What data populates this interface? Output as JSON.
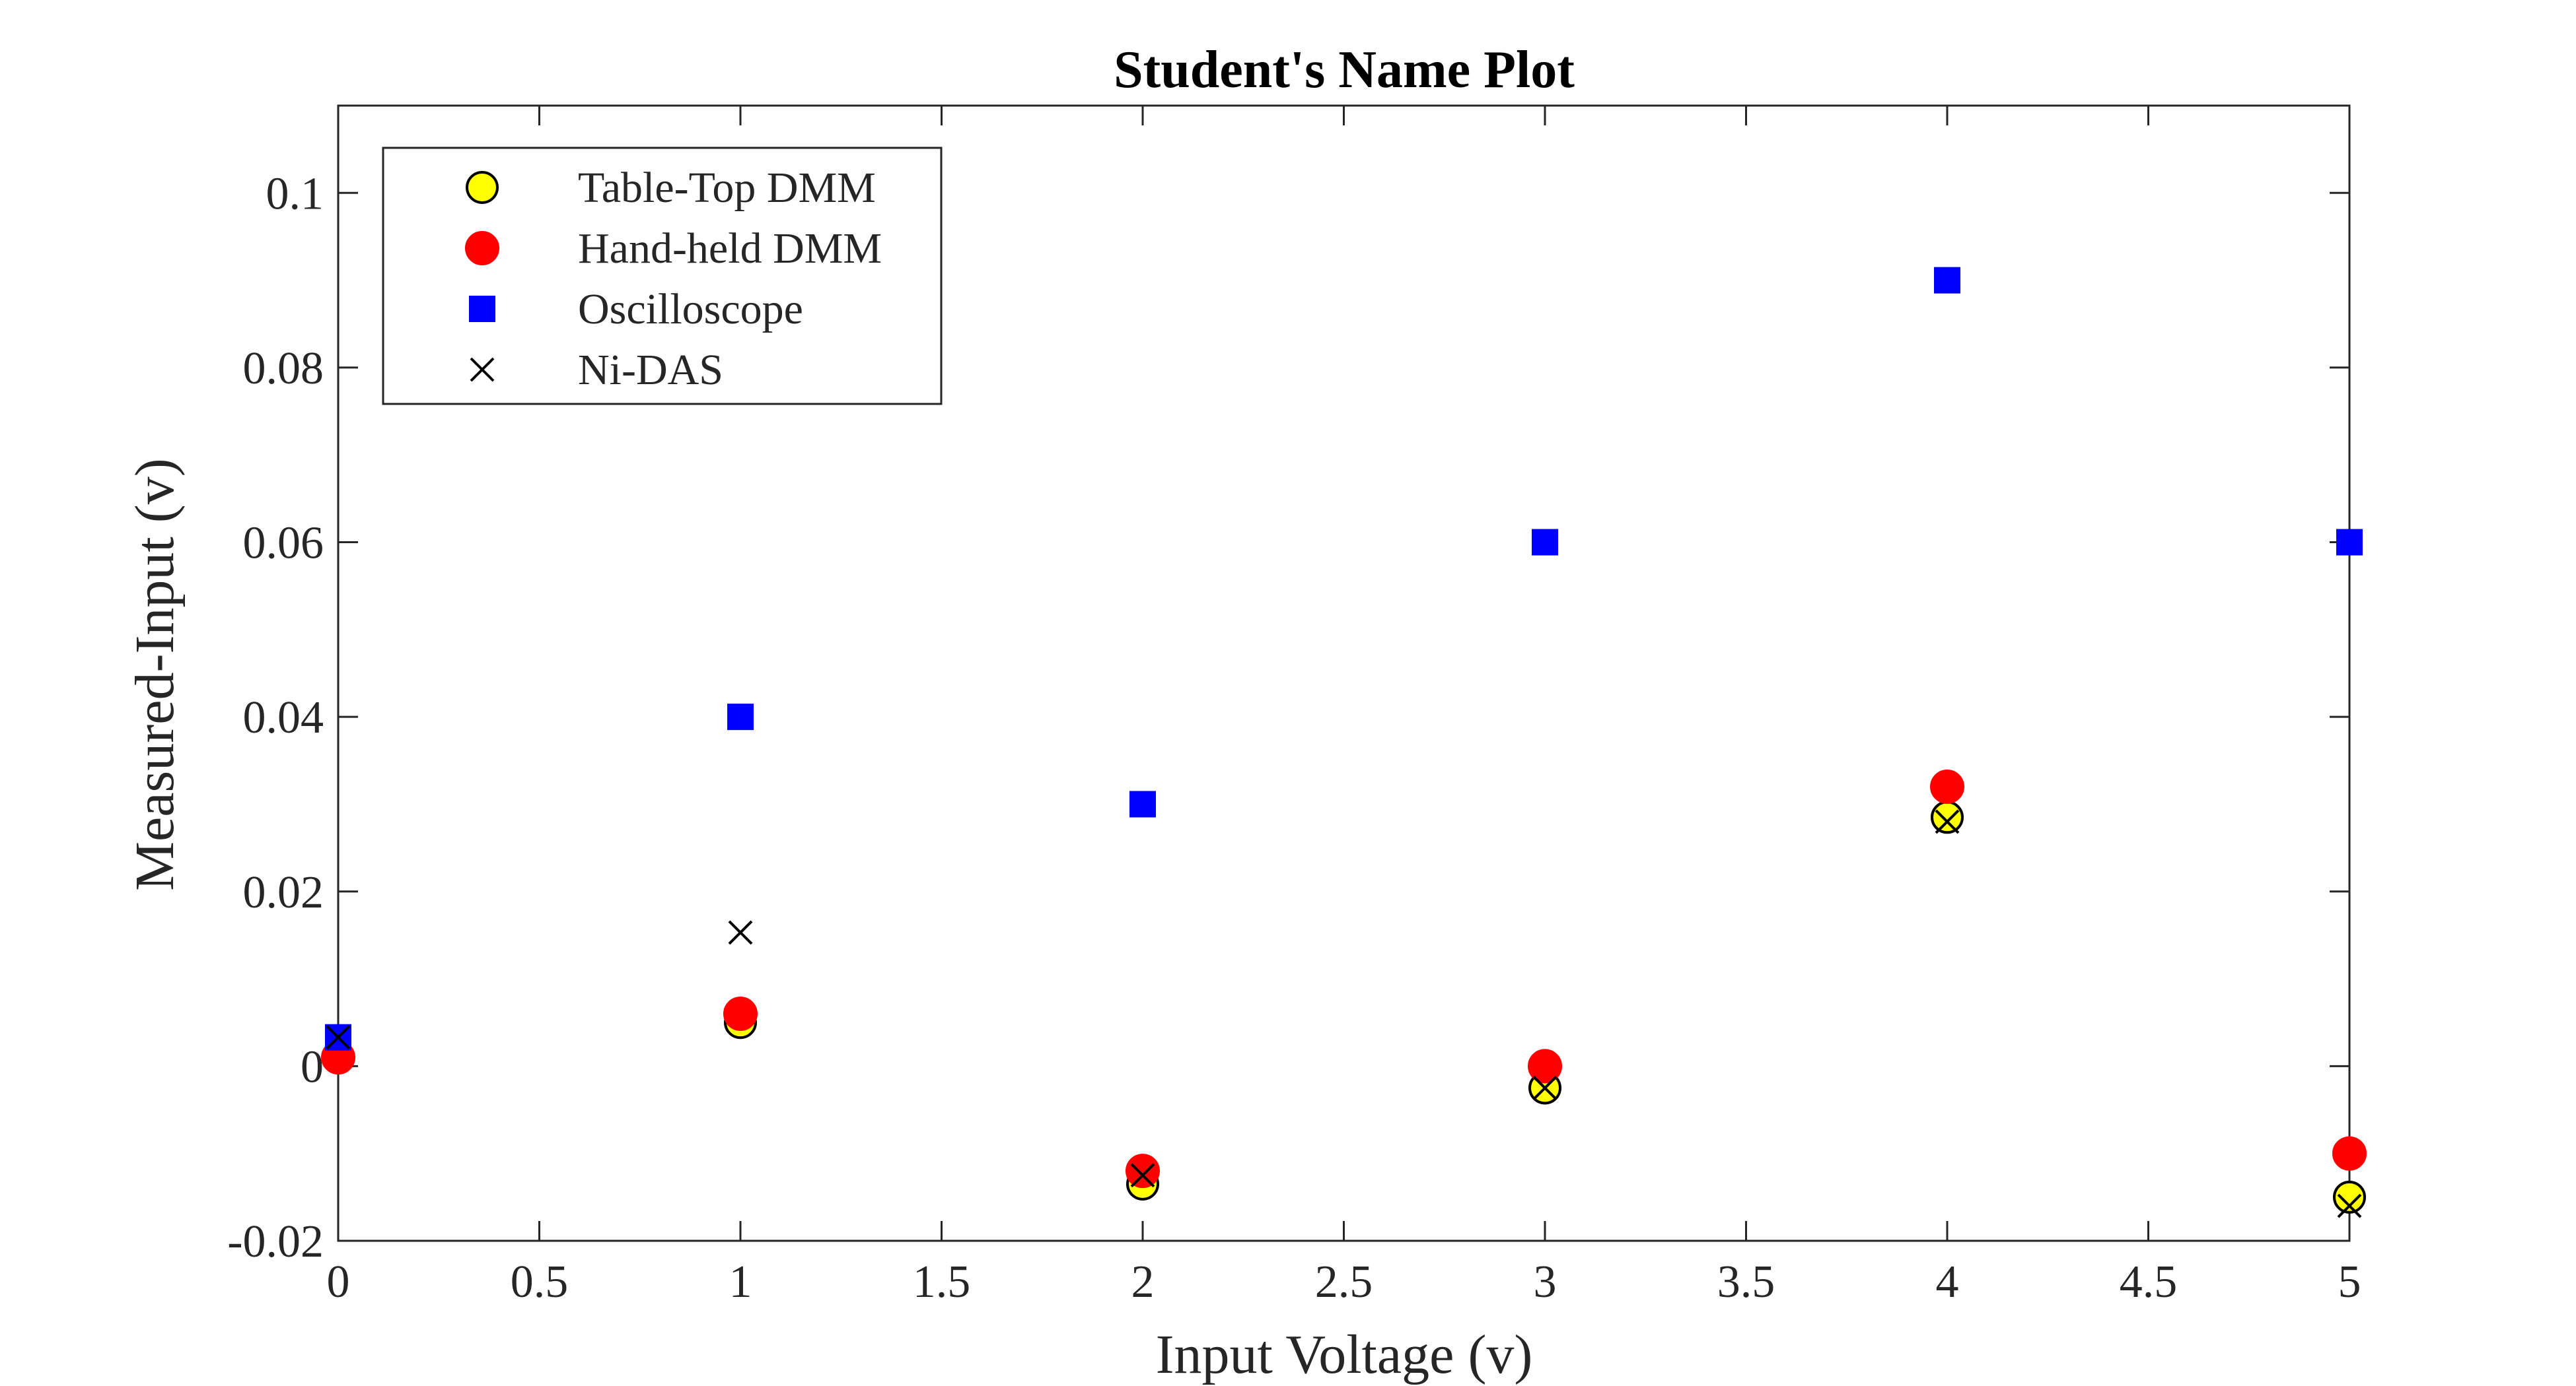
{
  "chart_data": {
    "type": "scatter",
    "title": "Student's Name Plot",
    "xlabel": "Input Voltage (v)",
    "ylabel": "Measured-Input (v)",
    "xlim": [
      0,
      5
    ],
    "ylim": [
      -0.02,
      0.11
    ],
    "xticks": [
      0,
      0.5,
      1,
      1.5,
      2,
      2.5,
      3,
      3.5,
      4,
      4.5,
      5
    ],
    "xtick_labels": [
      "0",
      "0.5",
      "1",
      "1.5",
      "2",
      "2.5",
      "3",
      "3.5",
      "4",
      "4.5",
      "5"
    ],
    "yticks": [
      -0.02,
      0,
      0.02,
      0.04,
      0.06,
      0.08,
      0.1
    ],
    "ytick_labels": [
      "-0.02",
      "0",
      "0.02",
      "0.04",
      "0.06",
      "0.08",
      "0.1"
    ],
    "grid": false,
    "legend_position": "top-left",
    "series": [
      {
        "name": "Table-Top DMM",
        "marker": "circle-open",
        "face_color": "#ffff00",
        "edge_color": "#000000",
        "x": [
          0,
          1,
          2,
          3,
          4,
          5
        ],
        "y": [
          0.001,
          0.005,
          -0.0135,
          -0.0025,
          0.0285,
          -0.015
        ]
      },
      {
        "name": "Hand-held DMM",
        "marker": "circle-filled",
        "face_color": "#ff0000",
        "edge_color": "#ff0000",
        "x": [
          0,
          1,
          2,
          3,
          4,
          5
        ],
        "y": [
          0.001,
          0.006,
          -0.012,
          0.0,
          0.032,
          -0.01
        ]
      },
      {
        "name": "Oscilloscope",
        "marker": "square-filled",
        "face_color": "#0000ff",
        "edge_color": "#0000ff",
        "x": [
          0,
          1,
          2,
          3,
          4,
          5
        ],
        "y": [
          0.0033,
          0.04,
          0.03,
          0.06,
          0.09,
          0.06
        ]
      },
      {
        "name": "Ni-DAS",
        "marker": "x",
        "face_color": "#000000",
        "edge_color": "#000000",
        "x": [
          0,
          1,
          2,
          3,
          4,
          5
        ],
        "y": [
          0.0033,
          0.0153,
          -0.0125,
          -0.0025,
          0.028,
          -0.016
        ]
      }
    ]
  }
}
